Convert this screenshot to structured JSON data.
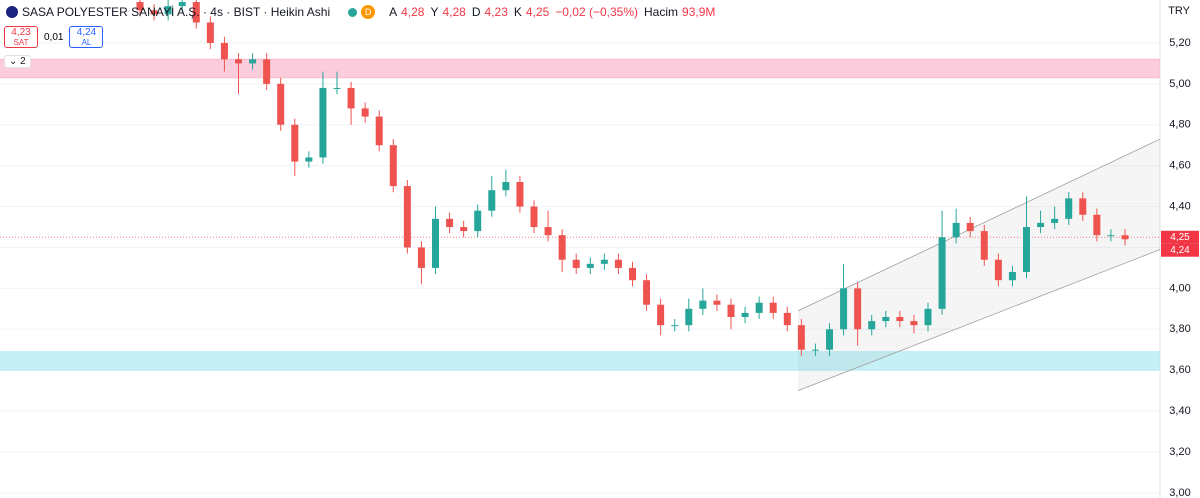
{
  "header": {
    "symbol": "SASA POLYESTER SANAYİ A.Ş. · 4s · BIST · Heikin Ashi",
    "badge": "D",
    "ohlc": [
      {
        "key": "A",
        "value": "4,28"
      },
      {
        "key": "Y",
        "value": "4,28"
      },
      {
        "key": "D",
        "value": "4,23"
      },
      {
        "key": "K",
        "value": "4,25"
      }
    ],
    "change": "−0,02 (−0,35%)",
    "volume_label": "Hacim",
    "volume": "93,9M"
  },
  "trade": {
    "sell_price": "4,23",
    "sell_label": "SAT",
    "spread": "0,01",
    "buy_price": "4,24",
    "buy_label": "AL"
  },
  "indicator_count": "2",
  "currency": "TRY",
  "chart_data": {
    "type": "candlestick",
    "up_color": "#26a69a",
    "down_color": "#ef5350",
    "grid": true,
    "ylim": [
      2.975,
      5.41
    ],
    "yticks": [
      {
        "value": 3.0,
        "label": "3,00"
      },
      {
        "value": 3.2,
        "label": "3,20"
      },
      {
        "value": 3.4,
        "label": "3,40"
      },
      {
        "value": 3.6,
        "label": "3,60"
      },
      {
        "value": 3.8,
        "label": "3,80"
      },
      {
        "value": 4.0,
        "label": "4,00"
      },
      {
        "value": 4.2,
        "label": "4,20"
      },
      {
        "value": 4.4,
        "label": "4,40"
      },
      {
        "value": 4.6,
        "label": "4,60"
      },
      {
        "value": 4.8,
        "label": "4,80"
      },
      {
        "value": 5.0,
        "label": "5,00"
      },
      {
        "value": 5.2,
        "label": "5,20"
      }
    ],
    "open": [
      5.4,
      5.36,
      5.34,
      5.38,
      5.4,
      5.3,
      5.2,
      5.12,
      5.1,
      5.12,
      5.0,
      4.8,
      4.62,
      4.64,
      4.98,
      4.98,
      4.88,
      4.84,
      4.7,
      4.5,
      4.2,
      4.1,
      4.34,
      4.3,
      4.28,
      4.38,
      4.48,
      4.52,
      4.4,
      4.3,
      4.26,
      4.14,
      4.1,
      4.12,
      4.14,
      4.1,
      4.04,
      3.92,
      3.82,
      3.82,
      3.9,
      3.94,
      3.92,
      3.86,
      3.88,
      3.93,
      3.88,
      3.82,
      3.7,
      3.7,
      3.8,
      4.0,
      3.8,
      3.84,
      3.86,
      3.84,
      3.82,
      3.9,
      4.25,
      4.32,
      4.28,
      4.14,
      4.04,
      4.08,
      4.3,
      4.32,
      4.34,
      4.44,
      4.36,
      4.26,
      4.26
    ],
    "high": [
      5.43,
      5.39,
      5.41,
      5.43,
      5.43,
      5.33,
      5.23,
      5.15,
      5.15,
      5.15,
      5.03,
      4.83,
      4.67,
      5.06,
      5.06,
      5.01,
      4.91,
      4.87,
      4.73,
      4.53,
      4.23,
      4.4,
      4.37,
      4.33,
      4.41,
      4.55,
      4.58,
      4.55,
      4.43,
      4.38,
      4.29,
      4.17,
      4.15,
      4.17,
      4.17,
      4.13,
      4.07,
      3.95,
      3.85,
      3.95,
      4.0,
      3.97,
      3.95,
      3.91,
      3.96,
      3.96,
      3.91,
      3.85,
      3.73,
      3.83,
      4.12,
      4.03,
      3.87,
      3.89,
      3.89,
      3.87,
      3.93,
      4.38,
      4.39,
      4.35,
      4.31,
      4.17,
      4.11,
      4.45,
      4.38,
      4.4,
      4.47,
      4.47,
      4.39,
      4.29,
      4.29
    ],
    "low": [
      5.33,
      5.31,
      5.31,
      5.35,
      5.27,
      5.17,
      5.06,
      4.95,
      5.07,
      4.97,
      4.77,
      4.55,
      4.59,
      4.61,
      4.95,
      4.8,
      4.81,
      4.67,
      4.47,
      4.17,
      4.02,
      4.07,
      4.27,
      4.25,
      4.25,
      4.35,
      4.45,
      4.37,
      4.27,
      4.23,
      4.08,
      4.07,
      4.07,
      4.09,
      4.07,
      4.01,
      3.89,
      3.77,
      3.79,
      3.79,
      3.87,
      3.89,
      3.8,
      3.83,
      3.85,
      3.85,
      3.79,
      3.67,
      3.67,
      3.67,
      3.77,
      3.72,
      3.77,
      3.81,
      3.81,
      3.78,
      3.79,
      3.87,
      4.22,
      4.25,
      4.11,
      4.01,
      4.01,
      4.05,
      4.27,
      4.29,
      4.31,
      4.33,
      4.23,
      4.23,
      4.21
    ],
    "close": [
      5.36,
      5.34,
      5.38,
      5.4,
      5.3,
      5.2,
      5.12,
      5.1,
      5.12,
      5.0,
      4.8,
      4.62,
      4.64,
      4.98,
      4.98,
      4.88,
      4.84,
      4.7,
      4.5,
      4.2,
      4.1,
      4.34,
      4.3,
      4.28,
      4.38,
      4.48,
      4.52,
      4.4,
      4.3,
      4.26,
      4.14,
      4.1,
      4.12,
      4.14,
      4.1,
      4.04,
      3.92,
      3.82,
      3.82,
      3.9,
      3.94,
      3.92,
      3.86,
      3.88,
      3.93,
      3.88,
      3.82,
      3.7,
      3.7,
      3.8,
      4.0,
      3.8,
      3.84,
      3.86,
      3.84,
      3.82,
      3.9,
      4.25,
      4.32,
      4.28,
      4.14,
      4.04,
      4.08,
      4.3,
      4.32,
      4.34,
      4.44,
      4.36,
      4.26,
      4.26,
      4.24
    ],
    "zones": [
      {
        "from": 5.03,
        "to": 5.12,
        "color": "#f8bbd0"
      },
      {
        "from": 3.6,
        "to": 3.69,
        "color": "#b2ebf2"
      }
    ],
    "channel": {
      "upper": [
        3.89,
        4.73
      ],
      "lower": [
        3.5,
        4.19
      ],
      "color": "#9e9e9e"
    },
    "last_price_line": 4.25,
    "price_labels": [
      {
        "value": 4.25,
        "label": "4,25"
      },
      {
        "value": 4.24,
        "label": "4,24"
      }
    ]
  }
}
